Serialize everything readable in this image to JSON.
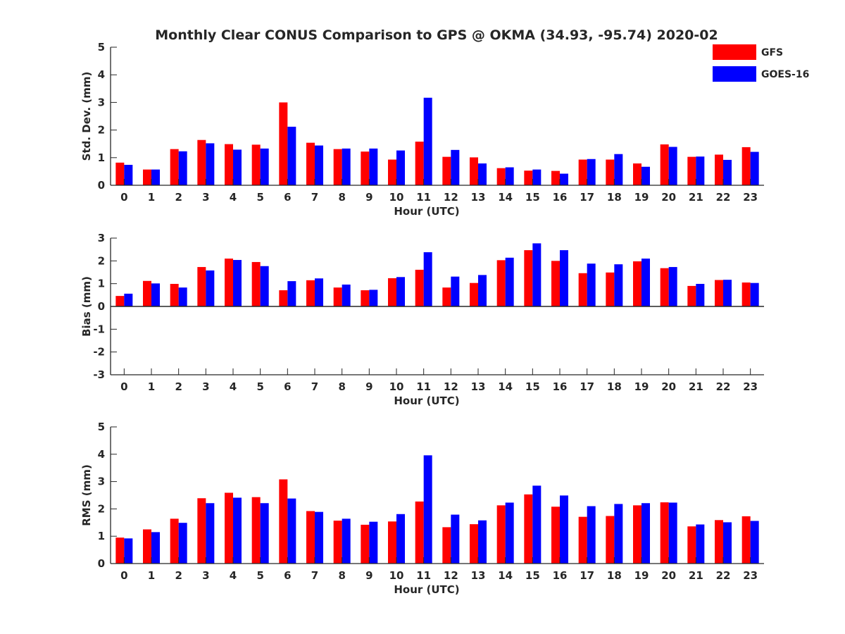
{
  "figure": {
    "title": "Monthly Clear CONUS Comparison to GPS @ OKMA (34.93, -95.74) 2020-02",
    "legend": {
      "placement": "top-right",
      "entries": [
        {
          "label": "GFS",
          "color": "#ff0000"
        },
        {
          "label": "GOES-16",
          "color": "#0000ff"
        }
      ]
    }
  },
  "chart_data": [
    {
      "type": "bar",
      "xlabel": "Hour (UTC)",
      "ylabel": "Std. Dev. (mm)",
      "ylim": [
        0,
        5
      ],
      "yticks": [
        0,
        1,
        2,
        3,
        4,
        5
      ],
      "categories": [
        "0",
        "1",
        "2",
        "3",
        "4",
        "5",
        "6",
        "7",
        "8",
        "9",
        "10",
        "11",
        "12",
        "13",
        "14",
        "15",
        "16",
        "17",
        "18",
        "19",
        "20",
        "21",
        "22",
        "23"
      ],
      "series": [
        {
          "name": "GFS",
          "color": "#ff0000",
          "values": [
            0.82,
            0.57,
            1.31,
            1.64,
            1.49,
            1.47,
            3.0,
            1.54,
            1.31,
            1.22,
            0.93,
            1.58,
            1.03,
            1.01,
            0.62,
            0.53,
            0.52,
            0.93,
            0.93,
            0.79,
            1.48,
            1.03,
            1.11,
            1.38
          ]
        },
        {
          "name": "GOES-16",
          "color": "#0000ff",
          "values": [
            0.74,
            0.57,
            1.23,
            1.52,
            1.29,
            1.33,
            2.12,
            1.44,
            1.33,
            1.33,
            1.26,
            3.17,
            1.28,
            0.79,
            0.65,
            0.57,
            0.42,
            0.95,
            1.13,
            0.67,
            1.39,
            1.04,
            0.92,
            1.21
          ]
        }
      ]
    },
    {
      "type": "bar",
      "xlabel": "Hour (UTC)",
      "ylabel": "Bias (mm)",
      "ylim": [
        -3,
        3
      ],
      "yticks": [
        -3,
        -2,
        -1,
        0,
        1,
        2,
        3
      ],
      "categories": [
        "0",
        "1",
        "2",
        "3",
        "4",
        "5",
        "6",
        "7",
        "8",
        "9",
        "10",
        "11",
        "12",
        "13",
        "14",
        "15",
        "16",
        "17",
        "18",
        "19",
        "20",
        "21",
        "22",
        "23"
      ],
      "series": [
        {
          "name": "GFS",
          "color": "#ff0000",
          "values": [
            0.46,
            1.12,
            0.99,
            1.73,
            2.1,
            1.95,
            0.71,
            1.15,
            0.83,
            0.71,
            1.24,
            1.61,
            0.83,
            1.03,
            2.03,
            2.47,
            2.0,
            1.46,
            1.49,
            1.98,
            1.68,
            0.9,
            1.16,
            1.05
          ]
        },
        {
          "name": "GOES-16",
          "color": "#0000ff",
          "values": [
            0.56,
            1.01,
            0.83,
            1.58,
            2.04,
            1.77,
            1.11,
            1.23,
            0.96,
            0.73,
            1.29,
            2.38,
            1.31,
            1.38,
            2.14,
            2.77,
            2.47,
            1.88,
            1.85,
            2.1,
            1.73,
            0.99,
            1.17,
            1.03
          ]
        }
      ]
    },
    {
      "type": "bar",
      "xlabel": "Hour (UTC)",
      "ylabel": "RMS (mm)",
      "ylim": [
        0,
        5
      ],
      "yticks": [
        0,
        1,
        2,
        3,
        4,
        5
      ],
      "categories": [
        "0",
        "1",
        "2",
        "3",
        "4",
        "5",
        "6",
        "7",
        "8",
        "9",
        "10",
        "11",
        "12",
        "13",
        "14",
        "15",
        "16",
        "17",
        "18",
        "19",
        "20",
        "21",
        "22",
        "23"
      ],
      "series": [
        {
          "name": "GFS",
          "color": "#ff0000",
          "values": [
            0.95,
            1.25,
            1.64,
            2.39,
            2.59,
            2.43,
            3.08,
            1.92,
            1.57,
            1.42,
            1.54,
            2.27,
            1.33,
            1.44,
            2.13,
            2.53,
            2.08,
            1.71,
            1.74,
            2.13,
            2.24,
            1.36,
            1.59,
            1.73
          ]
        },
        {
          "name": "GOES-16",
          "color": "#0000ff",
          "values": [
            0.92,
            1.15,
            1.49,
            2.21,
            2.41,
            2.21,
            2.38,
            1.89,
            1.64,
            1.53,
            1.81,
            3.96,
            1.79,
            1.58,
            2.23,
            2.85,
            2.49,
            2.1,
            2.18,
            2.21,
            2.23,
            1.43,
            1.51,
            1.56
          ]
        }
      ]
    }
  ]
}
